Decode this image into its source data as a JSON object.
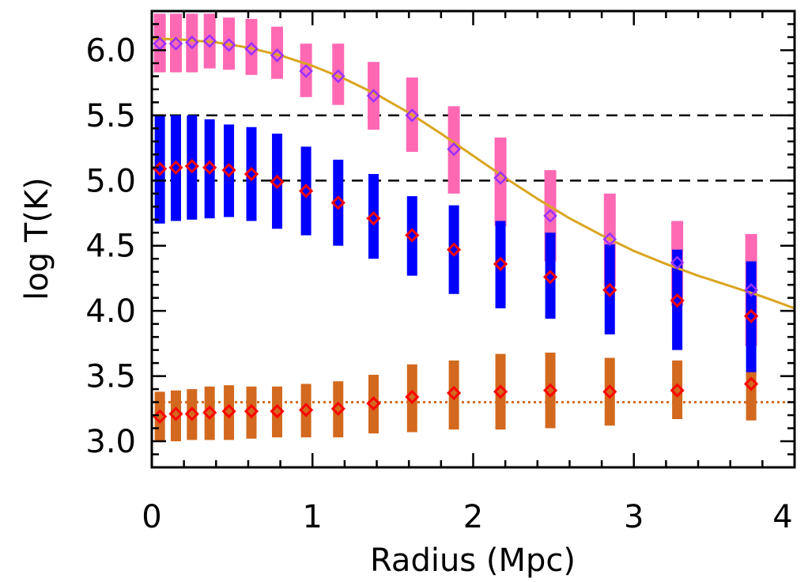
{
  "chart_data": {
    "type": "scatter",
    "xlabel": "Radius (Mpc)",
    "ylabel": "log T(K)",
    "xlim": [
      0,
      4
    ],
    "ylim": [
      2.8,
      6.3
    ],
    "xticks": [
      0,
      1,
      2,
      3,
      4
    ],
    "xtick_labels": [
      "0",
      "1",
      "2",
      "3",
      "4"
    ],
    "yticks": [
      3.0,
      3.5,
      4.0,
      4.5,
      5.0,
      5.5,
      6.0
    ],
    "ytick_labels": [
      "3.0",
      "3.5",
      "4.0",
      "4.5",
      "5.0",
      "5.5",
      "6.0"
    ],
    "x_minor_step": 0.2,
    "y_minor_step": 0.1,
    "grid": false,
    "legend": false,
    "reference_lines": [
      {
        "y": 5.5,
        "style": "dashed",
        "color": "#000000"
      },
      {
        "y": 5.0,
        "style": "dashed",
        "color": "#000000"
      },
      {
        "y": 3.3,
        "style": "dotted",
        "color": "#d2691e"
      }
    ],
    "curve": {
      "color": "#daa520",
      "x": [
        0,
        0.2,
        0.4,
        0.6,
        0.8,
        1.0,
        1.2,
        1.4,
        1.6,
        1.8,
        2.0,
        2.2,
        2.4,
        2.6,
        2.8,
        3.0,
        3.2,
        3.4,
        3.6,
        3.8,
        4.0
      ],
      "y": [
        6.09,
        6.08,
        6.06,
        6.02,
        5.96,
        5.88,
        5.78,
        5.66,
        5.52,
        5.36,
        5.19,
        5.02,
        4.86,
        4.71,
        4.58,
        4.46,
        4.36,
        4.27,
        4.19,
        4.11,
        4.02
      ]
    },
    "series": [
      {
        "color": "#ff69b4",
        "marker_color": "#9b30ff",
        "marker": "open-diamond",
        "x": [
          0.05,
          0.15,
          0.25,
          0.36,
          0.48,
          0.62,
          0.78,
          0.96,
          1.16,
          1.38,
          1.62,
          1.88,
          2.17,
          2.48,
          2.85,
          3.27,
          3.73
        ],
        "y": [
          6.05,
          6.05,
          6.06,
          6.07,
          6.04,
          6.01,
          5.96,
          5.84,
          5.8,
          5.65,
          5.5,
          5.24,
          5.02,
          4.73,
          4.55,
          4.37,
          4.16
        ],
        "low": [
          5.83,
          5.83,
          5.83,
          5.86,
          5.85,
          5.81,
          5.78,
          5.64,
          5.58,
          5.39,
          5.22,
          4.9,
          4.65,
          4.38,
          4.19,
          4.04,
          3.73
        ],
        "high": [
          6.28,
          6.28,
          6.28,
          6.28,
          6.25,
          6.24,
          6.18,
          6.05,
          6.05,
          5.91,
          5.79,
          5.57,
          5.33,
          5.08,
          4.9,
          4.69,
          4.59
        ]
      },
      {
        "color": "#0000ff",
        "marker_color": "#ff0000",
        "marker": "diamond",
        "x": [
          0.05,
          0.15,
          0.25,
          0.36,
          0.48,
          0.62,
          0.78,
          0.96,
          1.16,
          1.38,
          1.62,
          1.88,
          2.17,
          2.48,
          2.85,
          3.27,
          3.73
        ],
        "y": [
          5.09,
          5.1,
          5.11,
          5.1,
          5.08,
          5.05,
          4.99,
          4.92,
          4.83,
          4.71,
          4.58,
          4.47,
          4.36,
          4.26,
          4.16,
          4.08,
          3.96
        ],
        "low": [
          4.67,
          4.69,
          4.7,
          4.71,
          4.72,
          4.69,
          4.63,
          4.58,
          4.5,
          4.4,
          4.27,
          4.13,
          4.02,
          3.94,
          3.82,
          3.7,
          3.5
        ],
        "high": [
          5.5,
          5.5,
          5.5,
          5.47,
          5.43,
          5.41,
          5.36,
          5.26,
          5.16,
          5.05,
          4.88,
          4.81,
          4.69,
          4.6,
          4.51,
          4.47,
          4.38
        ]
      },
      {
        "color": "#d2691e",
        "marker_color": "#ff0000",
        "marker": "diamond",
        "x": [
          0.05,
          0.15,
          0.25,
          0.36,
          0.48,
          0.62,
          0.78,
          0.96,
          1.16,
          1.38,
          1.62,
          1.88,
          2.17,
          2.48,
          2.85,
          3.27,
          3.73
        ],
        "y": [
          3.19,
          3.21,
          3.21,
          3.22,
          3.23,
          3.23,
          3.23,
          3.24,
          3.25,
          3.29,
          3.34,
          3.37,
          3.38,
          3.39,
          3.38,
          3.39,
          3.44
        ],
        "low": [
          3.0,
          3.0,
          3.01,
          3.01,
          3.01,
          3.02,
          3.03,
          3.03,
          3.03,
          3.06,
          3.07,
          3.09,
          3.09,
          3.1,
          3.12,
          3.17,
          3.16
        ],
        "high": [
          3.38,
          3.39,
          3.4,
          3.42,
          3.43,
          3.42,
          3.42,
          3.44,
          3.46,
          3.51,
          3.59,
          3.62,
          3.67,
          3.68,
          3.64,
          3.62,
          3.53
        ]
      }
    ]
  }
}
